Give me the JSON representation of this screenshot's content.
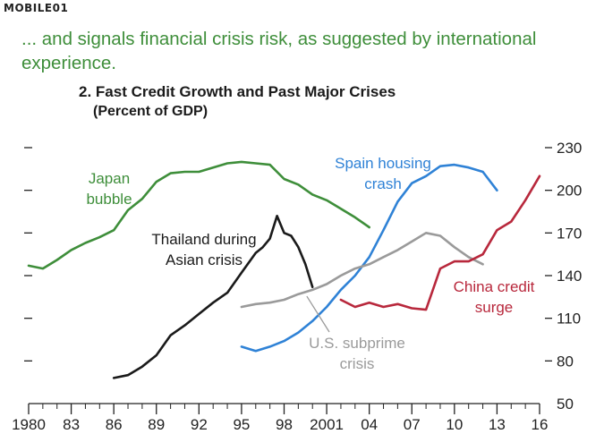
{
  "logo": "MOBILE01",
  "headline": "... and signals financial crisis risk, as suggested by international experience.",
  "chart_data": {
    "type": "line",
    "title": "2. Fast Credit Growth and Past Major Crises",
    "subtitle": "(Percent of GDP)",
    "x_ticks": [
      "1980",
      "83",
      "86",
      "89",
      "92",
      "95",
      "98",
      "2001",
      "04",
      "07",
      "10",
      "13",
      "16"
    ],
    "y_ticks": [
      50,
      80,
      110,
      140,
      170,
      200,
      230
    ],
    "xlim": [
      1980,
      2016
    ],
    "ylim": [
      50,
      230
    ],
    "grid": false,
    "series": [
      {
        "name": "Japan bubble",
        "color": "#3e8e3a",
        "label_lines": [
          "Japan",
          "bubble"
        ],
        "x": [
          1980,
          1981,
          1982,
          1983,
          1984,
          1985,
          1986,
          1987,
          1988,
          1989,
          1990,
          1991,
          1992,
          1993,
          1994,
          1995,
          1996,
          1997,
          1998,
          1999,
          2000,
          2001,
          2002,
          2003,
          2004
        ],
        "y": [
          147,
          145,
          151,
          158,
          163,
          167,
          172,
          186,
          194,
          206,
          212,
          213,
          213,
          216,
          219,
          220,
          219,
          218,
          208,
          204,
          197,
          193,
          187,
          181,
          174
        ]
      },
      {
        "name": "Thailand during Asian crisis",
        "color": "#1a1a1a",
        "label_lines": [
          "Thailand during",
          "Asian crisis"
        ],
        "x": [
          1986,
          1987,
          1988,
          1989,
          1990,
          1991,
          1992,
          1993,
          1994,
          1995,
          1996,
          1996.5,
          1997,
          1997.5,
          1998,
          1998.5,
          1999,
          1999.5,
          2000
        ],
        "y": [
          68,
          70,
          76,
          84,
          98,
          105,
          113,
          121,
          128,
          142,
          156,
          160,
          166,
          182,
          170,
          168,
          160,
          148,
          132
        ]
      },
      {
        "name": "Spain housing crash",
        "color": "#2f82d6",
        "label_lines": [
          "Spain housing",
          "crash"
        ],
        "x": [
          1995,
          1996,
          1997,
          1998,
          1999,
          2000,
          2001,
          2002,
          2003,
          2004,
          2005,
          2006,
          2007,
          2008,
          2009,
          2010,
          2011,
          2012,
          2013
        ],
        "y": [
          90,
          87,
          90,
          94,
          100,
          108,
          118,
          130,
          140,
          153,
          172,
          192,
          205,
          210,
          217,
          218,
          216,
          213,
          200
        ]
      },
      {
        "name": "U.S. subprime crisis",
        "color": "#9a9a9a",
        "label_lines": [
          "U.S. subprime",
          "crisis"
        ],
        "x": [
          1995,
          1996,
          1997,
          1998,
          1999,
          2000,
          2001,
          2002,
          2003,
          2004,
          2005,
          2006,
          2007,
          2008,
          2009,
          2010,
          2011,
          2012
        ],
        "y": [
          118,
          120,
          121,
          123,
          127,
          130,
          134,
          140,
          145,
          148,
          153,
          158,
          164,
          170,
          168,
          160,
          153,
          148
        ]
      },
      {
        "name": "China credit surge",
        "color": "#b8283c",
        "label_lines": [
          "China credit",
          "surge"
        ],
        "x": [
          2002,
          2003,
          2004,
          2005,
          2006,
          2007,
          2008,
          2009,
          2010,
          2011,
          2012,
          2013,
          2014,
          2015,
          2016
        ],
        "y": [
          123,
          118,
          121,
          118,
          120,
          117,
          116,
          145,
          150,
          150,
          155,
          172,
          178,
          193,
          210
        ]
      }
    ]
  }
}
